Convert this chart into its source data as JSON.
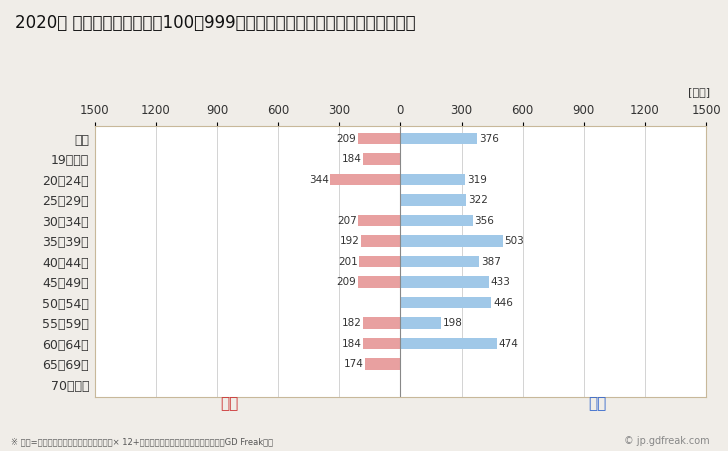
{
  "title": "2020年 民間企業（従業者数100〜999人）フルタイム労働者の男女別平均年収",
  "ylabel_unit": "[万円]",
  "categories": [
    "全体",
    "19歳以下",
    "20〜24歳",
    "25〜29歳",
    "30〜34歳",
    "35〜39歳",
    "40〜44歳",
    "45〜49歳",
    "50〜54歳",
    "55〜59歳",
    "60〜64歳",
    "65〜69歳",
    "70歳以上"
  ],
  "female_values": [
    209,
    184,
    344,
    0,
    207,
    192,
    201,
    209,
    0,
    182,
    184,
    174,
    0
  ],
  "male_values": [
    376,
    0,
    319,
    322,
    356,
    503,
    387,
    433,
    446,
    198,
    474,
    0,
    0
  ],
  "female_color": "#e8a0a0",
  "male_color": "#a0c8e8",
  "female_label": "女性",
  "male_label": "男性",
  "female_label_color": "#cc3333",
  "male_label_color": "#3366cc",
  "xlim": 1500,
  "background_color": "#f0ede8",
  "plot_bg_color": "#ffffff",
  "footnote": "※ 年収=「きまって支給する現金給与額」× 12+「年間賞与その他特別給与額」としてGD Freak推計",
  "watermark": "© jp.gdfreak.com",
  "title_fontsize": 12,
  "tick_fontsize": 8.5,
  "category_fontsize": 9,
  "value_fontsize": 7.5,
  "bar_height": 0.55
}
